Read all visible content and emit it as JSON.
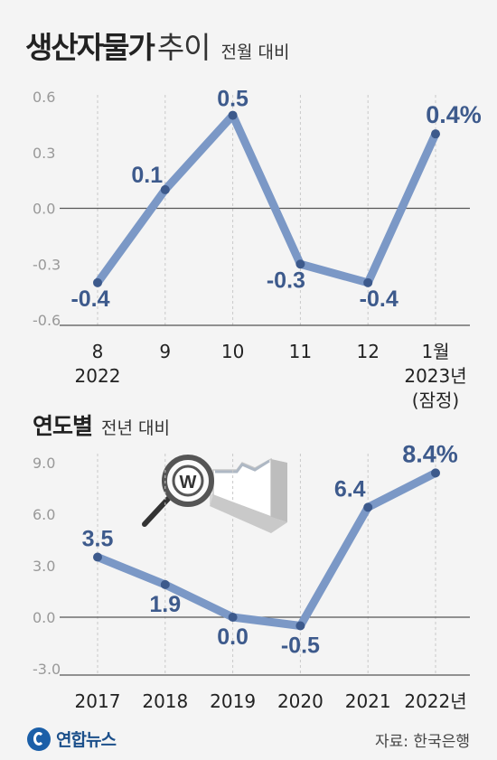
{
  "header": {
    "title_bold": "생산자물가",
    "title_light": "추이",
    "subtitle": "전월 대비"
  },
  "section2": {
    "title": "연도별",
    "subtitle": "전년 대비"
  },
  "footer": {
    "logo": "연합뉴스",
    "source": "자료: 한국은행"
  },
  "colors": {
    "line": "#7b98c6",
    "dot": "#3d5a8c",
    "label": "#3d5a8c"
  },
  "icons": [
    "magnifier-won-icon",
    "line-chart-backdrop-icon",
    "yonhap-logo-icon"
  ],
  "chart_data": [
    {
      "type": "line",
      "title": "",
      "xlabel": "",
      "ylabel": "",
      "ylim": [
        -0.6,
        0.6
      ],
      "yticks": [
        "0.6",
        "0.3",
        "0.0",
        "-0.3",
        "-0.6"
      ],
      "ytick_values": [
        0.6,
        0.3,
        0.0,
        -0.3,
        -0.6
      ],
      "categories": [
        {
          "main": "8",
          "sub": "2022",
          "sub2": ""
        },
        {
          "main": "9",
          "sub": "",
          "sub2": ""
        },
        {
          "main": "10",
          "sub": "",
          "sub2": ""
        },
        {
          "main": "11",
          "sub": "",
          "sub2": ""
        },
        {
          "main": "12",
          "sub": "",
          "sub2": ""
        },
        {
          "main": "1월",
          "sub": "2023년",
          "sub2": "(잠정)"
        }
      ],
      "values": [
        -0.4,
        0.1,
        0.5,
        -0.3,
        -0.4,
        0.4
      ],
      "labels": [
        "-0.4",
        "0.1",
        "0.5",
        "-0.3",
        "-0.4",
        "0.4%"
      ],
      "grid": "vertical dashed"
    },
    {
      "type": "line",
      "title": "",
      "xlabel": "",
      "ylabel": "",
      "ylim": [
        -3.0,
        9.0
      ],
      "yticks": [
        "9.0",
        "6.0",
        "3.0",
        "0.0",
        "-3.0"
      ],
      "ytick_values": [
        9.0,
        6.0,
        3.0,
        0.0,
        -3.0
      ],
      "categories": [
        "2017",
        "2018",
        "2019",
        "2020",
        "2021",
        "2022년"
      ],
      "values": [
        3.5,
        1.9,
        0.0,
        -0.5,
        6.4,
        8.4
      ],
      "labels": [
        "3.5",
        "1.9",
        "0.0",
        "-0.5",
        "6.4",
        "8.4%"
      ],
      "grid": "vertical dashed"
    }
  ]
}
